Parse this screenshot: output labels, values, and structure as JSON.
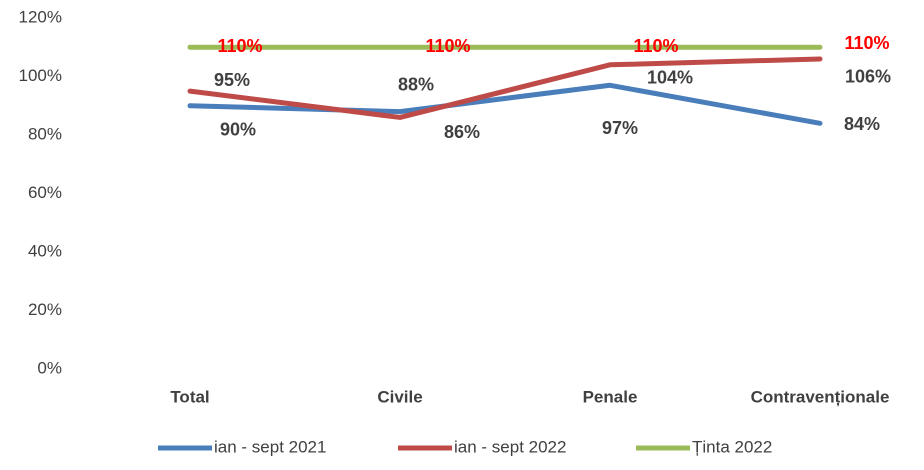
{
  "chart_data": {
    "type": "line",
    "categories": [
      "Total",
      "Civile",
      "Penale",
      "Contravenționale"
    ],
    "series": [
      {
        "name": "ian - sept 2021",
        "color": "#4a7ebb",
        "label_color": "#404040",
        "values": [
          90,
          88,
          97,
          84
        ],
        "value_labels": [
          "90%",
          "88%",
          "97%",
          "84%"
        ]
      },
      {
        "name": "ian - sept 2022",
        "color": "#be4b48",
        "label_color": "#404040",
        "values": [
          95,
          86,
          104,
          106
        ],
        "value_labels": [
          "95%",
          "86%",
          "104%",
          "106%"
        ]
      },
      {
        "name": "Ținta 2022",
        "color": "#9bbb59",
        "label_color": "#ff0000",
        "values": [
          110,
          110,
          110,
          110
        ],
        "value_labels": [
          "110%",
          "110%",
          "110%",
          "110%"
        ]
      }
    ],
    "ylim": [
      0,
      120
    ],
    "yticks": [
      {
        "value": 0,
        "label": "0%"
      },
      {
        "value": 20,
        "label": "20%"
      },
      {
        "value": 40,
        "label": "40%"
      },
      {
        "value": 60,
        "label": "60%"
      },
      {
        "value": 80,
        "label": "80%"
      },
      {
        "value": 100,
        "label": "100%"
      },
      {
        "value": 120,
        "label": "120%"
      }
    ],
    "grid": false,
    "legend": "bottom"
  }
}
